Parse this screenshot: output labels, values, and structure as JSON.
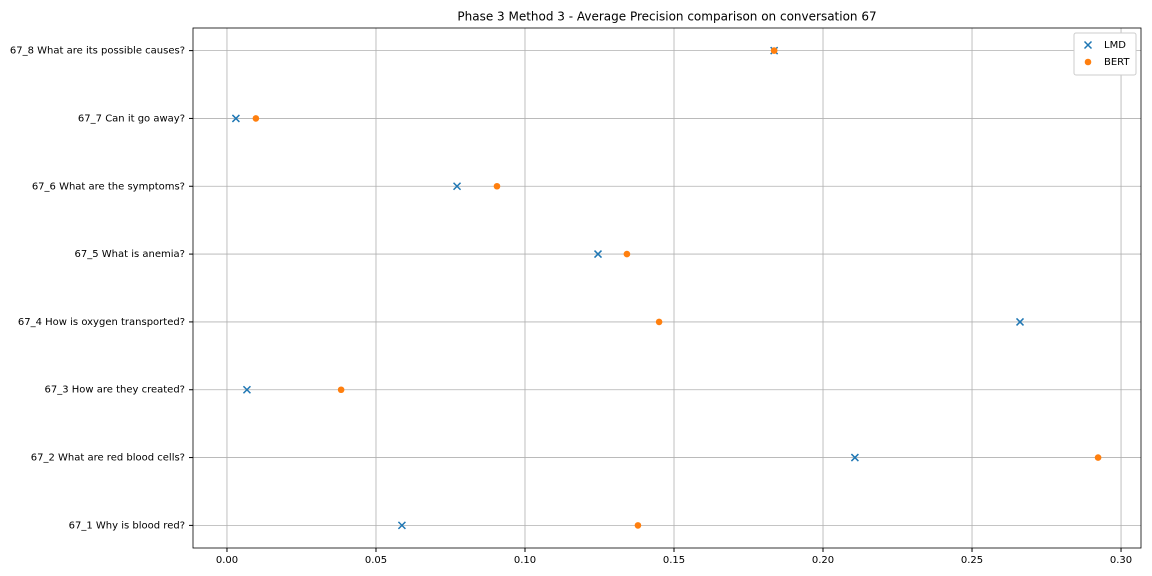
{
  "chart_data": {
    "type": "scatter",
    "title": "Phase 3 Method 3 - Average Precision comparison on conversation 67",
    "categories": [
      "67_1 Why is blood red?",
      "67_2 What are red blood cells?",
      "67_3 How are they created?",
      "67_4 How is oxygen transported?",
      "67_5 What is anemia?",
      "67_6 What are the symptoms?",
      "67_7 Can it go away?",
      "67_8 What are its possible causes?"
    ],
    "series": [
      {
        "name": "LMD",
        "color": "#1f77b4",
        "marker": "x",
        "values": [
          0.0587,
          0.2107,
          0.0067,
          0.2661,
          0.1245,
          0.0772,
          0.003,
          0.1836
        ]
      },
      {
        "name": "BERT",
        "color": "#ff7f0e",
        "marker": "o",
        "values": [
          0.1379,
          0.2923,
          0.0383,
          0.145,
          0.1342,
          0.0906,
          0.0097,
          0.1836
        ]
      }
    ],
    "xlim": [
      -0.0114,
      0.3067
    ],
    "xticks": [
      {
        "value": 0,
        "label": "0.00"
      },
      0.05,
      {
        "value": 0.1,
        "label": "0.10"
      },
      0.15,
      {
        "value": 0.2,
        "label": "0.20"
      },
      0.25,
      {
        "value": 0.3,
        "label": "0.30"
      }
    ],
    "grid": true,
    "legend": "upper right"
  }
}
